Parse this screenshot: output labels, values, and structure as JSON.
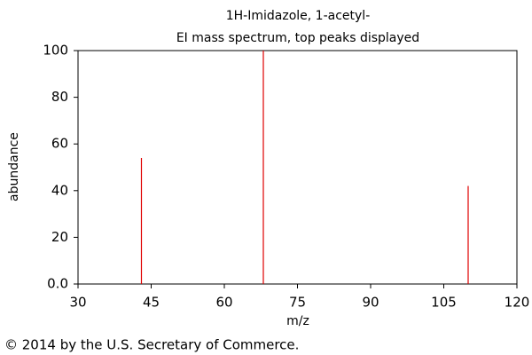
{
  "chart_data": {
    "type": "stem",
    "title": "1H-Imidazole, 1-acetyl-",
    "subtitle": "EI mass spectrum, top peaks displayed",
    "x_label": "m/z",
    "y_label": "abundance",
    "x": [
      43,
      68,
      110
    ],
    "values": [
      54,
      100,
      42
    ],
    "color": "#e00000",
    "xlim": [
      30,
      120
    ],
    "xticks": [
      30,
      45,
      60,
      75,
      90,
      105,
      120
    ],
    "ylim": [
      0,
      100
    ],
    "yticks": [
      {
        "value": 0,
        "label": "0.0"
      },
      20,
      40,
      60,
      80,
      100
    ],
    "footer": "© 2014 by the U.S. Secretary of Commerce."
  }
}
